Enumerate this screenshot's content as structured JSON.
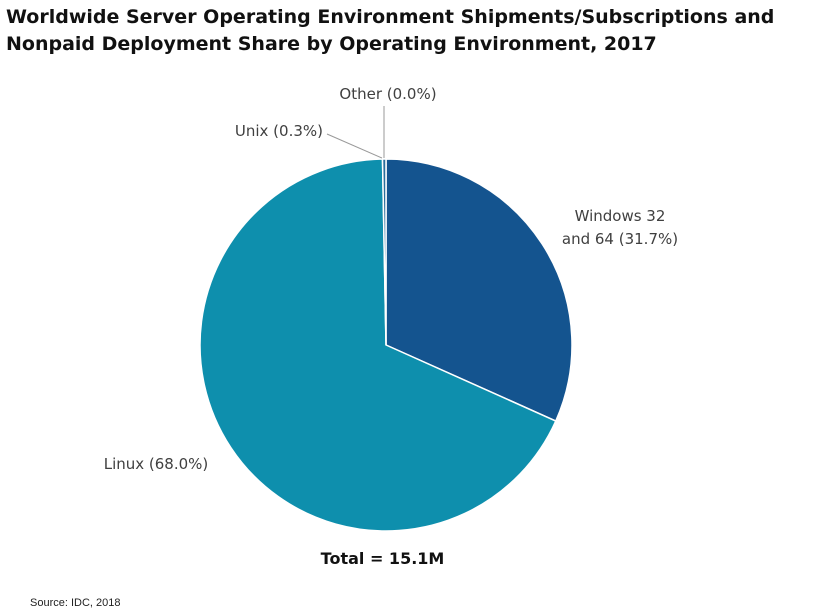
{
  "title_lines": [
    "Worldwide Server Operating Environment Shipments/Subscriptions and",
    "Nonpaid Deployment Share by Operating Environment, 2017"
  ],
  "chart_data": {
    "type": "pie",
    "title": "Worldwide Server Operating Environment Shipments/Subscriptions and Nonpaid Deployment Share by Operating Environment, 2017",
    "slices": [
      {
        "name": "Windows 32 and 64",
        "value": 31.7,
        "label_lines": [
          "Windows 32",
          "and 64 (31.7%)"
        ],
        "color": "#14548f"
      },
      {
        "name": "Linux",
        "value": 68.0,
        "label_lines": [
          "Linux (68.0%)"
        ],
        "color": "#0e8fad"
      },
      {
        "name": "Unix",
        "value": 0.3,
        "label_lines": [
          "Unix (0.3%)"
        ],
        "color": "#2b6e9c"
      },
      {
        "name": "Other",
        "value": 0.0,
        "label_lines": [
          "Other (0.0%)"
        ],
        "color": "#aaaaaa"
      }
    ],
    "total_label": "Total = 15.1M"
  },
  "source": "Source: IDC, 2018"
}
